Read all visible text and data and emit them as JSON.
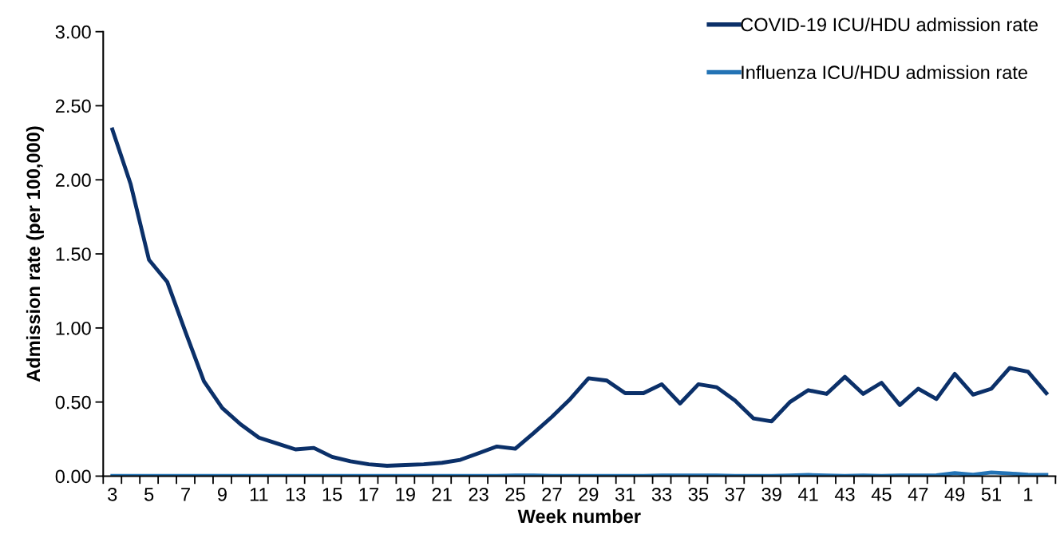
{
  "chart_data": {
    "type": "line",
    "xlabel": "Week number",
    "ylabel": "Admission rate (per 100,000)",
    "categories": [
      "3",
      null,
      "5",
      null,
      "7",
      null,
      "9",
      null,
      "11",
      null,
      "13",
      null,
      "15",
      null,
      "17",
      null,
      "19",
      null,
      "21",
      null,
      "23",
      null,
      "25",
      null,
      "27",
      null,
      "29",
      null,
      "31",
      null,
      "33",
      null,
      "35",
      null,
      "37",
      null,
      "39",
      null,
      "41",
      null,
      "43",
      null,
      "45",
      null,
      "47",
      null,
      "49",
      null,
      "51",
      null,
      "1",
      null
    ],
    "series": [
      {
        "name": "COVID-19 ICU/HDU admission rate",
        "color": "#0b3069",
        "values": [
          2.34,
          1.97,
          1.46,
          1.31,
          0.97,
          0.64,
          0.46,
          0.35,
          0.26,
          0.22,
          0.18,
          0.19,
          0.13,
          0.1,
          0.08,
          0.07,
          0.075,
          0.08,
          0.09,
          0.11,
          0.155,
          0.2,
          0.185,
          0.29,
          0.4,
          0.52,
          0.66,
          0.645,
          0.56,
          0.56,
          0.62,
          0.49,
          0.62,
          0.6,
          0.51,
          0.39,
          0.37,
          0.5,
          0.58,
          0.555,
          0.67,
          0.555,
          0.63,
          0.48,
          0.59,
          0.52,
          0.69,
          0.55,
          0.59,
          0.73,
          0.705,
          0.56
        ]
      },
      {
        "name": "Influenza ICU/HDU admission rate",
        "color": "#2373b5",
        "values": [
          0.002,
          0.002,
          0.002,
          0.002,
          0.002,
          0.002,
          0.002,
          0.002,
          0.002,
          0.002,
          0.002,
          0.002,
          0.002,
          0.002,
          0.002,
          0.002,
          0.002,
          0.002,
          0.002,
          0.002,
          0.002,
          0.002,
          0.004,
          0.004,
          0.002,
          0.002,
          0.002,
          0.002,
          0.002,
          0.002,
          0.004,
          0.004,
          0.004,
          0.004,
          0.002,
          0.002,
          0.002,
          0.004,
          0.008,
          0.004,
          0.002,
          0.004,
          0.002,
          0.004,
          0.004,
          0.006,
          0.02,
          0.01,
          0.025,
          0.018,
          0.01,
          0.008
        ]
      }
    ],
    "ylim": [
      0,
      3
    ],
    "yticks": [
      {
        "value": 0,
        "label": "0.00"
      },
      {
        "value": 0.5,
        "label": "0.50"
      },
      {
        "value": 1,
        "label": "1.00"
      },
      {
        "value": 1.5,
        "label": "1.50"
      },
      {
        "value": 2,
        "label": "2.00"
      },
      {
        "value": 2.5,
        "label": "2.50"
      },
      {
        "value": 3,
        "label": "3.00"
      }
    ],
    "legend": "top right",
    "grid": false,
    "marker": "none",
    "line_style": "solid"
  }
}
